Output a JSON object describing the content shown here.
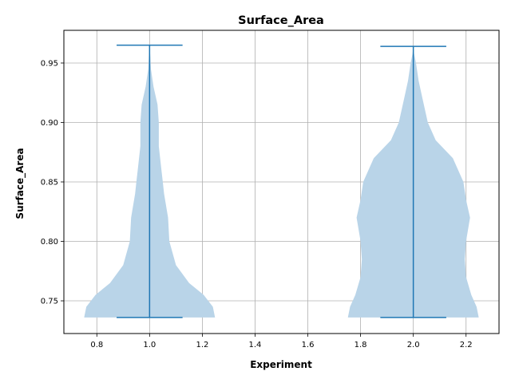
{
  "chart_data": {
    "type": "violin",
    "title": "Surface_Area",
    "xlabel": "Experiment",
    "ylabel": "Surface_Area",
    "xlim": [
      0.675,
      2.325
    ],
    "ylim": [
      0.7225,
      0.9775
    ],
    "xticks": [
      "0.8",
      "1.0",
      "1.2",
      "1.4",
      "1.6",
      "1.8",
      "2.0",
      "2.2"
    ],
    "yticks": [
      "0.75",
      "0.80",
      "0.85",
      "0.90",
      "0.95"
    ],
    "grid": true,
    "colors": {
      "body": "#b9d4e8",
      "line": "#1f77b4",
      "grid": "#b0b0b0"
    },
    "violins": [
      {
        "position": 1.0,
        "min": 0.736,
        "max": 0.965,
        "density": [
          [
            0.736,
            0.248
          ],
          [
            0.745,
            0.24
          ],
          [
            0.755,
            0.205
          ],
          [
            0.765,
            0.15
          ],
          [
            0.78,
            0.1
          ],
          [
            0.8,
            0.075
          ],
          [
            0.82,
            0.07
          ],
          [
            0.84,
            0.055
          ],
          [
            0.85,
            0.05
          ],
          [
            0.86,
            0.045
          ],
          [
            0.88,
            0.035
          ],
          [
            0.9,
            0.035
          ],
          [
            0.915,
            0.03
          ],
          [
            0.93,
            0.015
          ],
          [
            0.945,
            0.005
          ],
          [
            0.955,
            0.003
          ],
          [
            0.965,
            0.0
          ]
        ]
      },
      {
        "position": 2.0,
        "min": 0.736,
        "max": 0.964,
        "density": [
          [
            0.736,
            0.248
          ],
          [
            0.745,
            0.24
          ],
          [
            0.755,
            0.22
          ],
          [
            0.77,
            0.2
          ],
          [
            0.785,
            0.195
          ],
          [
            0.8,
            0.2
          ],
          [
            0.82,
            0.215
          ],
          [
            0.835,
            0.2
          ],
          [
            0.85,
            0.19
          ],
          [
            0.87,
            0.15
          ],
          [
            0.885,
            0.085
          ],
          [
            0.9,
            0.055
          ],
          [
            0.92,
            0.035
          ],
          [
            0.935,
            0.02
          ],
          [
            0.95,
            0.01
          ],
          [
            0.958,
            0.003
          ],
          [
            0.964,
            0.0
          ]
        ]
      }
    ]
  }
}
